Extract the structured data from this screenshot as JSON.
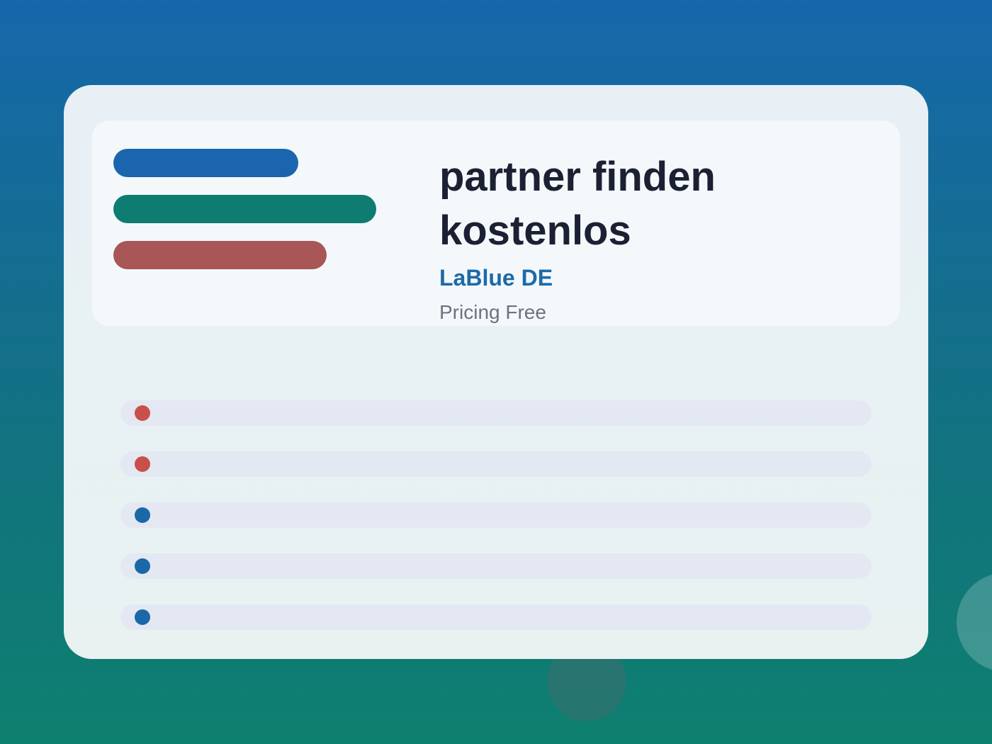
{
  "card": {
    "title": "partner finden kostenlos",
    "brand": "LaBlue DE",
    "pricing": "Pricing Free"
  }
}
